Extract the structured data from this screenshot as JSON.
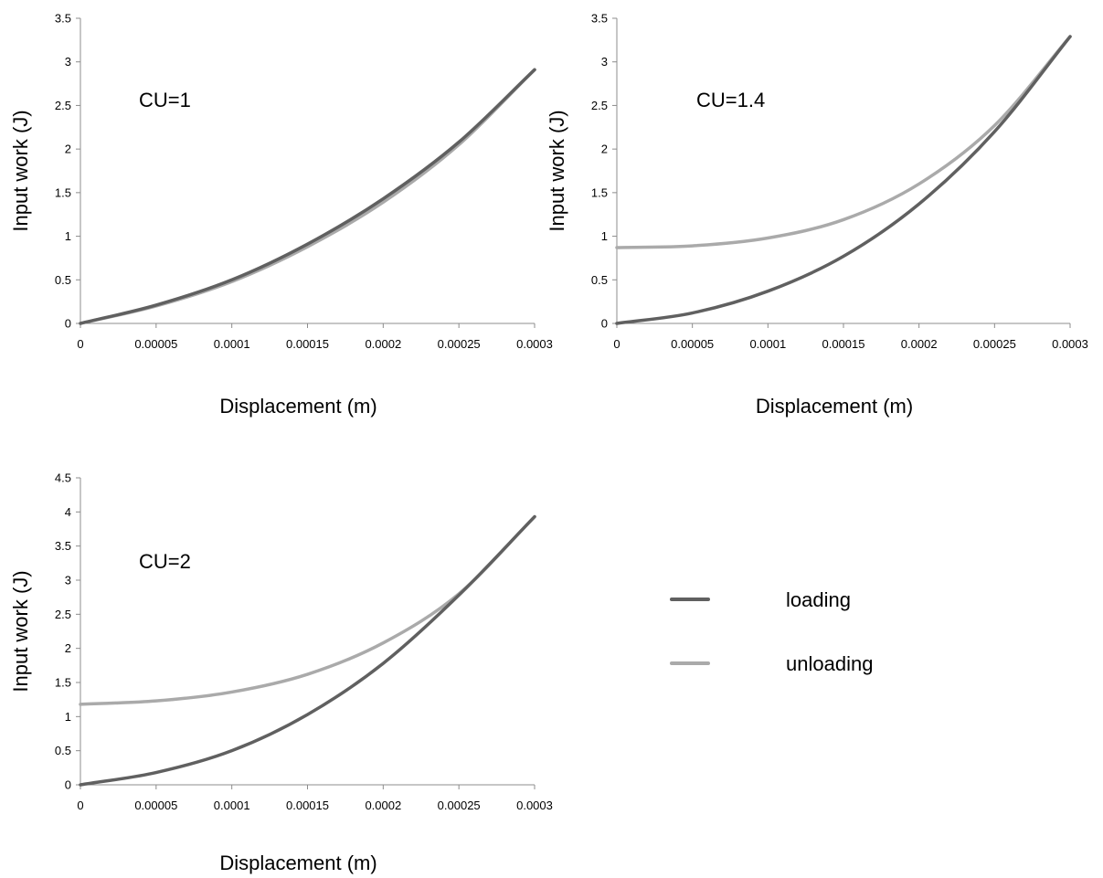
{
  "chart_data": [
    {
      "type": "line",
      "annotation": "CU=1",
      "xlabel": "Displacement (m)",
      "ylabel": "Input work (J)",
      "xlim": [
        0,
        0.0003
      ],
      "ylim": [
        0,
        3.5
      ],
      "x_ticks": [
        "0",
        "0.00005",
        "0.0001",
        "0.00015",
        "0.0002",
        "0.00025",
        "0.0003"
      ],
      "y_ticks": [
        "0",
        "0.5",
        "1",
        "1.5",
        "2",
        "2.5",
        "3",
        "3.5"
      ],
      "x": [
        0,
        5e-05,
        0.0001,
        0.00015,
        0.0002,
        0.00025,
        0.0003
      ],
      "series": [
        {
          "name": "loading",
          "color": "#606060",
          "values": [
            0,
            0.21,
            0.5,
            0.91,
            1.43,
            2.08,
            2.91
          ]
        },
        {
          "name": "unloading",
          "color": "#aaaaaa",
          "values": [
            0,
            0.2,
            0.48,
            0.88,
            1.39,
            2.05,
            2.91
          ]
        }
      ],
      "grid": false
    },
    {
      "type": "line",
      "annotation": "CU=1.4",
      "xlabel": "Displacement (m)",
      "ylabel": "Input work (J)",
      "xlim": [
        0,
        0.0003
      ],
      "ylim": [
        0,
        3.5
      ],
      "x_ticks": [
        "0",
        "0.00005",
        "0.0001",
        "0.00015",
        "0.0002",
        "0.00025",
        "0.0003"
      ],
      "y_ticks": [
        "0",
        "0.5",
        "1",
        "1.5",
        "2",
        "2.5",
        "3",
        "3.5"
      ],
      "x": [
        0,
        5e-05,
        0.0001,
        0.00015,
        0.0002,
        0.00025,
        0.0003
      ],
      "series": [
        {
          "name": "loading",
          "color": "#606060",
          "values": [
            0,
            0.12,
            0.37,
            0.77,
            1.37,
            2.2,
            3.29
          ]
        },
        {
          "name": "unloading",
          "color": "#aaaaaa",
          "values": [
            0.87,
            0.89,
            0.98,
            1.19,
            1.6,
            2.27,
            3.29
          ]
        }
      ],
      "grid": false
    },
    {
      "type": "line",
      "annotation": "CU=2",
      "xlabel": "Displacement (m)",
      "ylabel": "Input work (J)",
      "xlim": [
        0,
        0.0003
      ],
      "ylim": [
        0,
        4.5
      ],
      "x_ticks": [
        "0",
        "0.00005",
        "0.0001",
        "0.00015",
        "0.0002",
        "0.00025",
        "0.0003"
      ],
      "y_ticks": [
        "0",
        "0.5",
        "1",
        "1.5",
        "2",
        "2.5",
        "3",
        "3.5",
        "4",
        "4.5"
      ],
      "x": [
        0,
        5e-05,
        0.0001,
        0.00015,
        0.0002,
        0.00025,
        0.0003
      ],
      "series": [
        {
          "name": "loading",
          "color": "#606060",
          "values": [
            0,
            0.18,
            0.5,
            1.03,
            1.78,
            2.78,
            3.93
          ]
        },
        {
          "name": "unloading",
          "color": "#aaaaaa",
          "values": [
            1.18,
            1.23,
            1.36,
            1.62,
            2.08,
            2.8,
            3.93
          ]
        }
      ],
      "grid": false
    }
  ],
  "legend": {
    "placement": "right of bottom-left chart",
    "items": [
      {
        "label": "loading",
        "color": "#606060"
      },
      {
        "label": "unloading",
        "color": "#aaaaaa"
      }
    ]
  }
}
